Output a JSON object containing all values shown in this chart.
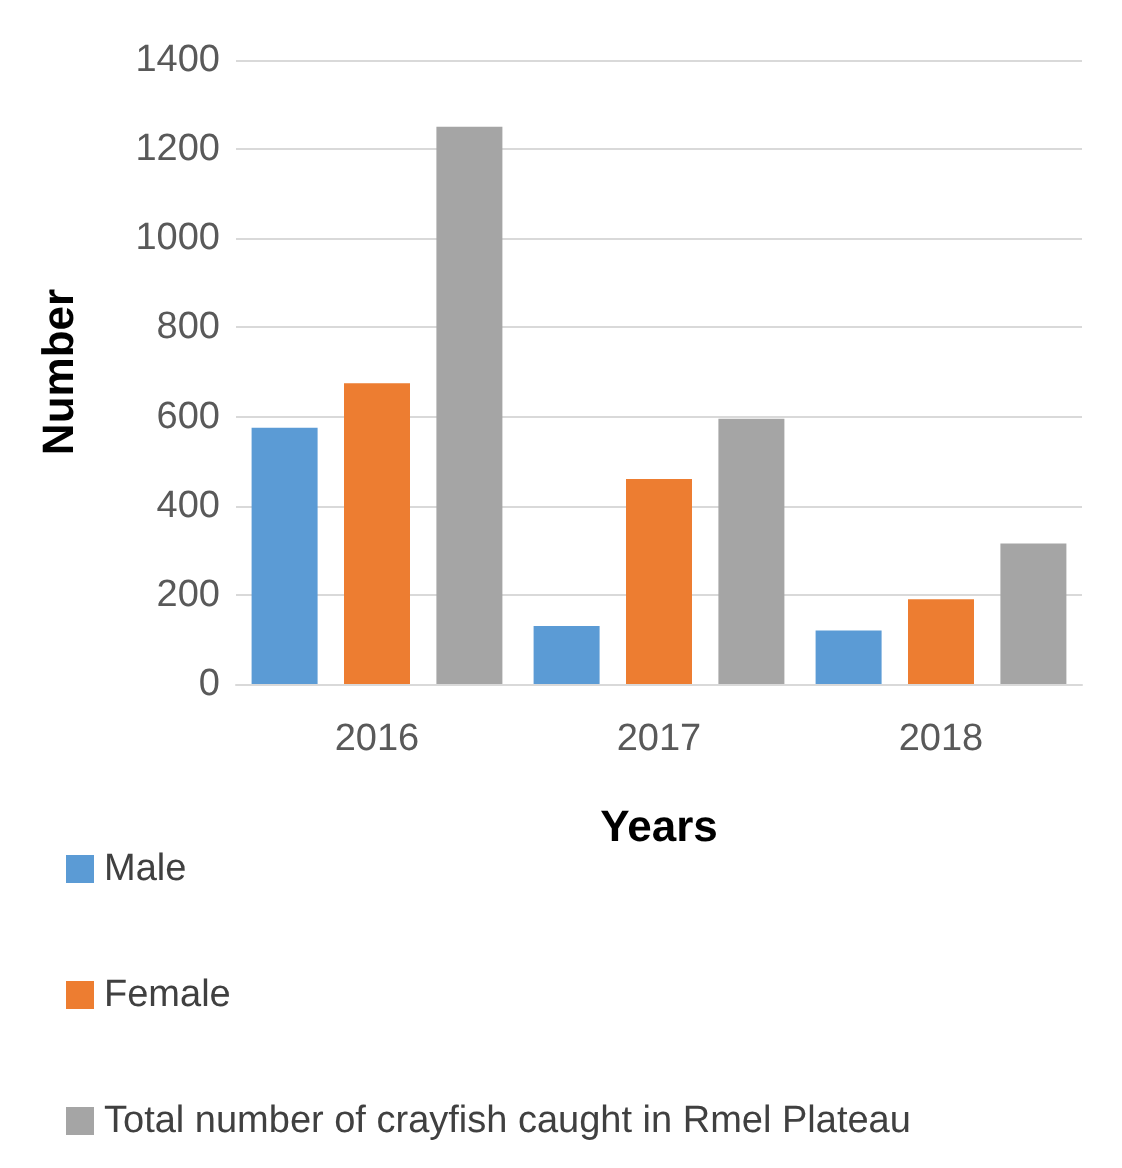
{
  "chart_data": {
    "type": "bar",
    "xlabel": "Years",
    "ylabel": "Number",
    "categories": [
      "2016",
      "2017",
      "2018"
    ],
    "series": [
      {
        "name": "Male",
        "color": "#5b9bd5",
        "values": [
          575,
          130,
          120
        ]
      },
      {
        "name": "Female",
        "color": "#ed7d31",
        "values": [
          675,
          460,
          190
        ]
      },
      {
        "name": "Total number of crayfish caught in Rmel Plateau",
        "color": "#a5a5a5",
        "values": [
          1250,
          595,
          315
        ]
      }
    ],
    "ylim": [
      0,
      1400
    ],
    "yticks": [
      0,
      200,
      400,
      600,
      800,
      1000,
      1200,
      1400
    ],
    "grid": "y",
    "legend": "bottom left"
  }
}
